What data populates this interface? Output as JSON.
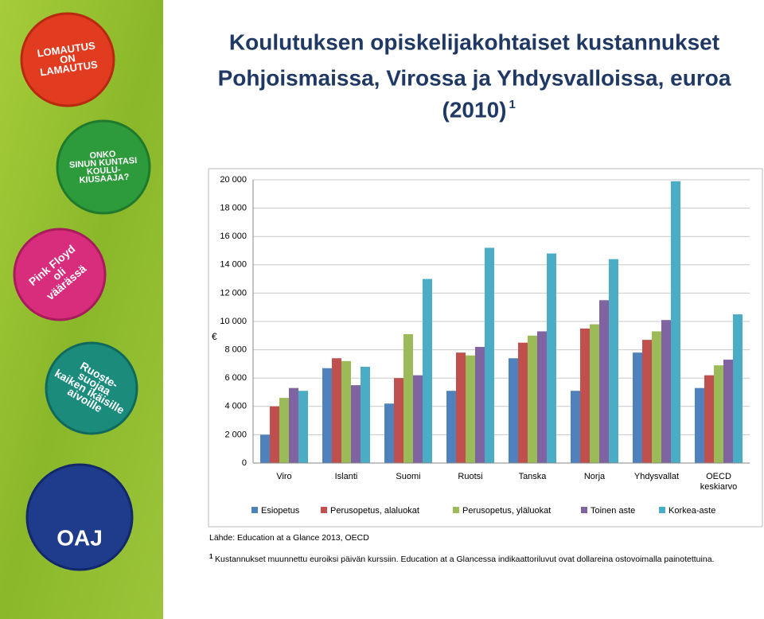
{
  "badges": [
    {
      "lines": [
        "LOMAUTUS",
        "ON",
        "LAMAUTUS"
      ]
    },
    {
      "lines": [
        "ONKO",
        "SINUN KUNTASI",
        "KOULU-",
        "KIUSAAJA?"
      ]
    },
    {
      "lines": [
        "Pink Floyd",
        "oli",
        "väärässä"
      ]
    },
    {
      "lines": [
        "Ruoste-",
        "suojaa",
        "kaiken ikäisille",
        "aivoille"
      ]
    },
    {
      "lines": [
        "OAJ"
      ]
    }
  ],
  "chart_data": {
    "type": "bar",
    "title": [
      "Koulutuksen opiskelijakohtaiset kustannukset",
      "Pohjoismaissa, Virossa ja Yhdysvalloissa, euroa",
      "(2010)"
    ],
    "title_note": "1",
    "y_label": "€",
    "categories": [
      "Viro",
      "Islanti",
      "Suomi",
      "Ruotsi",
      "Tanska",
      "Norja",
      "Yhdysvallat",
      "OECD keskiarvo"
    ],
    "series": [
      {
        "name": "Esiopetus",
        "color": "#4f81bd",
        "values": [
          2000,
          6700,
          4200,
          5100,
          7400,
          5100,
          7800,
          5300
        ]
      },
      {
        "name": "Perusopetus, alaluokat",
        "color": "#c0504d",
        "values": [
          4000,
          7400,
          6000,
          7800,
          8500,
          9500,
          8700,
          6200
        ]
      },
      {
        "name": "Perusopetus, yläluokat",
        "color": "#9bbb59",
        "values": [
          4600,
          7200,
          9100,
          7600,
          9000,
          9800,
          9300,
          6900
        ]
      },
      {
        "name": "Toinen aste",
        "color": "#8064a2",
        "values": [
          5300,
          5500,
          6200,
          8200,
          9300,
          11500,
          10100,
          7300
        ]
      },
      {
        "name": "Korkea-aste",
        "color": "#4bacc6",
        "values": [
          5100,
          6800,
          13000,
          15200,
          14800,
          14400,
          19900,
          10500
        ]
      }
    ],
    "ylim": [
      0,
      20000
    ],
    "yticks": [
      0,
      {
        "value": 2000,
        "label": "2 000"
      },
      {
        "value": 4000,
        "label": "4 000"
      },
      {
        "value": 6000,
        "label": "6 000"
      },
      {
        "value": 8000,
        "label": "8 000"
      },
      {
        "value": 10000,
        "label": "10 000"
      },
      {
        "value": 12000,
        "label": "12 000"
      },
      {
        "value": 14000,
        "label": "14 000"
      },
      {
        "value": 16000,
        "label": "16 000"
      },
      {
        "value": 18000,
        "label": "18 000"
      },
      {
        "value": 20000,
        "label": "20 000"
      }
    ],
    "grid": true,
    "legend": "bottom",
    "source": "Lähde: Education at a Glance 2013, OECD",
    "footnote_marker": "1",
    "footnote": "Kustannukset muunnettu euroiksi päivän kurssiin. Education at a Glancessa indikaattoriluvut ovat dollareina ostovoimalla painotettuina."
  }
}
